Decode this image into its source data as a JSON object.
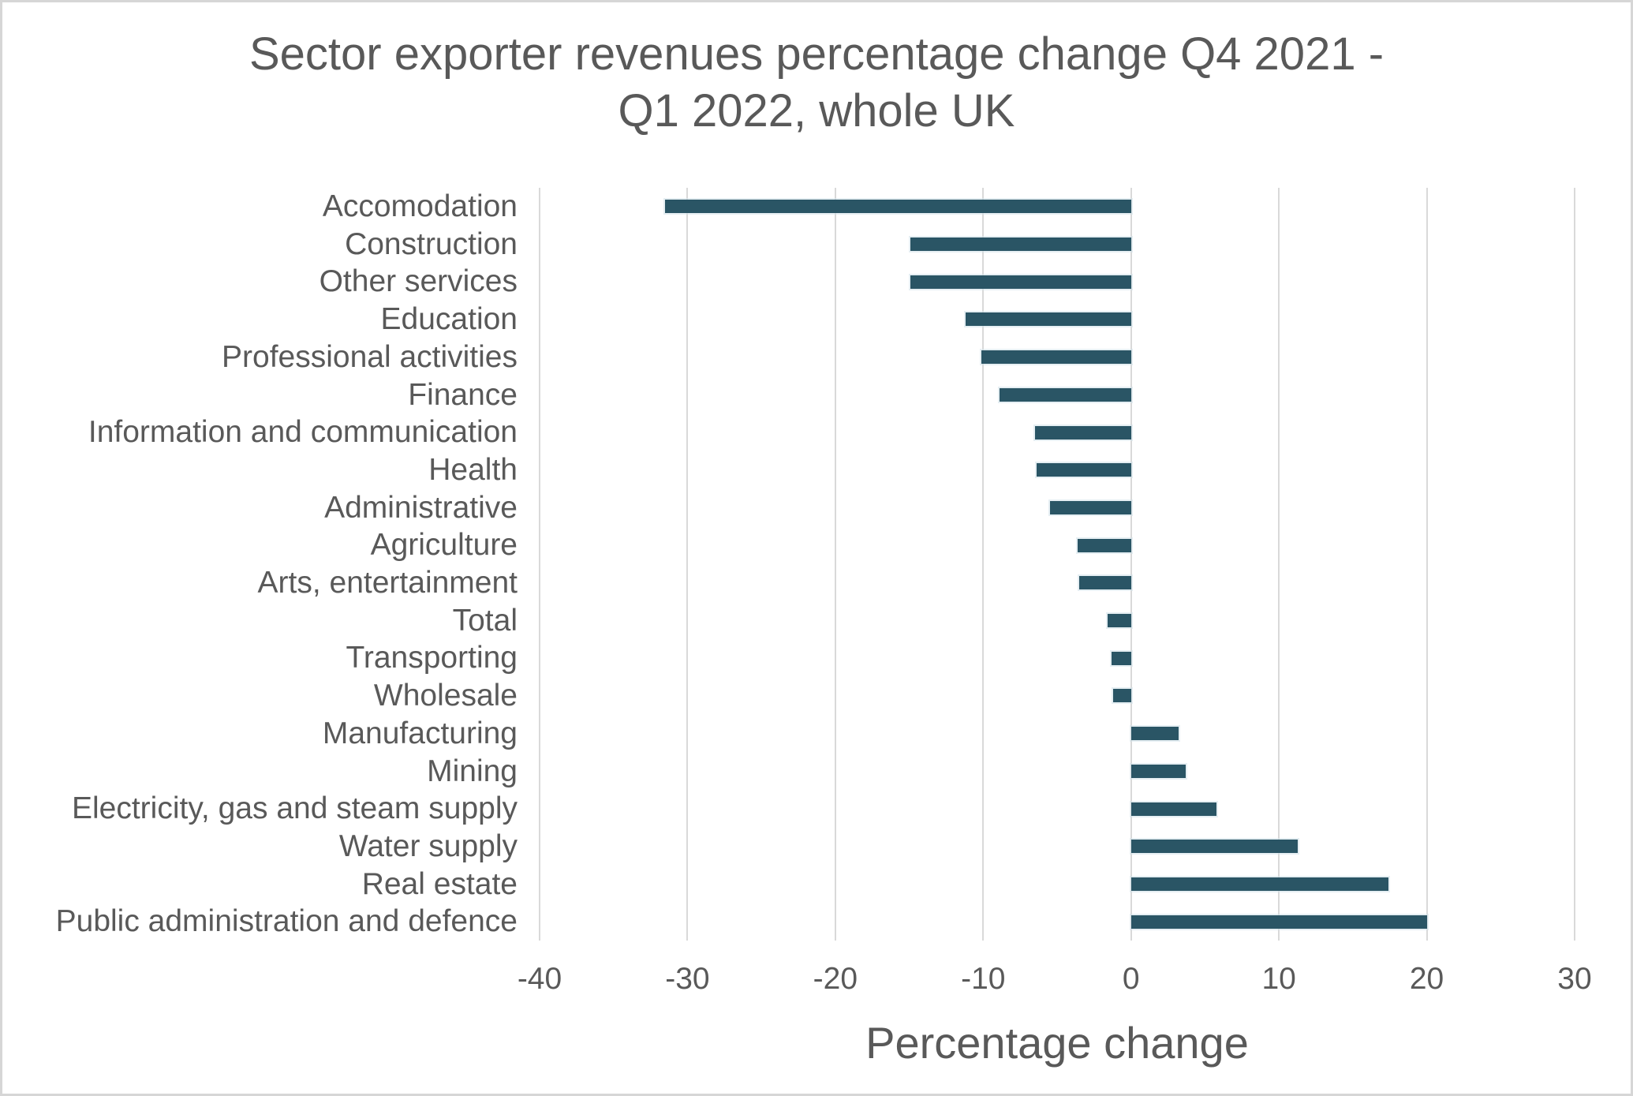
{
  "window": {
    "background_color": "#ffffff",
    "frame_border_color": "#d6d6d6"
  },
  "chart_data": {
    "type": "bar",
    "orientation": "horizontal",
    "title": "Sector exporter revenues percentage change Q4 2021 - Q1 2022, whole UK",
    "title_lines": [
      "Sector exporter revenues percentage change Q4 2021 -",
      "Q1 2022, whole UK"
    ],
    "xlabel": "Percentage change",
    "ylabel": "",
    "categories": [
      "Accomodation",
      "Construction",
      "Other services",
      "Education",
      "Professional activities",
      "Finance",
      "Information and communication",
      "Health",
      "Administrative",
      "Agriculture",
      "Arts, entertainment",
      "Total",
      "Transporting",
      "Wholesale",
      "Manufacturing",
      "Mining",
      "Electricity, gas and steam supply",
      "Water supply",
      "Real estate",
      "Public administration and defence"
    ],
    "values": [
      -31.5,
      -14.9,
      -14.9,
      -11.2,
      -10.1,
      -8.9,
      -6.5,
      -6.4,
      -5.5,
      -3.6,
      -3.5,
      -1.6,
      -1.3,
      -1.2,
      3.2,
      3.7,
      5.8,
      11.3,
      17.4,
      20.0
    ],
    "xlim": [
      -40,
      30
    ],
    "xticks": [
      -40,
      -30,
      -20,
      -10,
      0,
      10,
      20,
      30
    ],
    "xtick_labels": [
      "-40",
      "-30",
      "-20",
      "-10",
      "0",
      "10",
      "20",
      "30"
    ],
    "grid": "vertical",
    "legend": "none",
    "bar_color": "#2a5565",
    "gridline_color": "#d9d9d9",
    "text_color": "#595959"
  }
}
